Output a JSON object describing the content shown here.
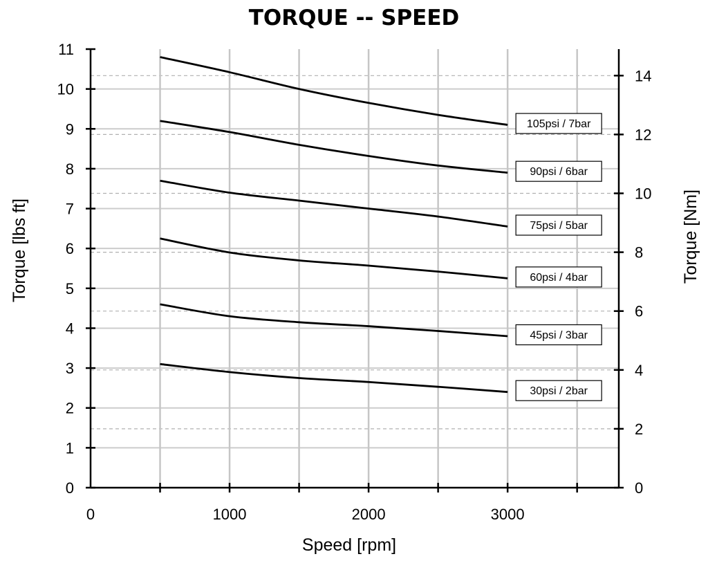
{
  "chart_data": {
    "type": "line",
    "title": "TORQUE -- SPEED",
    "xlabel": "Speed [rpm]",
    "ylabel": "Torque [lbs ft]",
    "y2label": "Torque [Nm]",
    "xlim": [
      0,
      3800
    ],
    "ylim": [
      0,
      11
    ],
    "y2lim": [
      0,
      14.9
    ],
    "x_ticks": [
      0,
      1000,
      2000,
      3000
    ],
    "y_ticks": [
      0,
      1,
      2,
      3,
      4,
      5,
      6,
      7,
      8,
      9,
      10,
      11
    ],
    "y2_ticks": [
      0,
      2,
      4,
      6,
      8,
      10,
      12,
      14
    ],
    "x_gridlines": [
      500,
      1000,
      1500,
      2000,
      2500,
      3000,
      3500
    ],
    "y2_gridlines": [
      0,
      2,
      4,
      6,
      8,
      10,
      12,
      14
    ],
    "grid": true,
    "series": [
      {
        "name": "105psi / 7bar",
        "x": [
          500,
          1000,
          1500,
          2000,
          2500,
          3000
        ],
        "y": [
          10.8,
          10.42,
          10.0,
          9.65,
          9.35,
          9.1
        ]
      },
      {
        "name": "90psi / 6bar",
        "x": [
          500,
          1000,
          1500,
          2000,
          2500,
          3000
        ],
        "y": [
          9.2,
          8.92,
          8.6,
          8.32,
          8.08,
          7.9
        ]
      },
      {
        "name": "75psi / 5bar",
        "x": [
          500,
          1000,
          1500,
          2000,
          2500,
          3000
        ],
        "y": [
          7.7,
          7.4,
          7.2,
          7.0,
          6.8,
          6.55
        ]
      },
      {
        "name": "60psi / 4bar",
        "x": [
          500,
          1000,
          1500,
          2000,
          2500,
          3000
        ],
        "y": [
          6.25,
          5.9,
          5.7,
          5.57,
          5.42,
          5.25
        ]
      },
      {
        "name": "45psi / 3bar",
        "x": [
          500,
          1000,
          1500,
          2000,
          2500,
          3000
        ],
        "y": [
          4.6,
          4.3,
          4.15,
          4.05,
          3.93,
          3.8
        ]
      },
      {
        "name": "30psi / 2bar",
        "x": [
          500,
          1000,
          1500,
          2000,
          2500,
          3000
        ],
        "y": [
          3.1,
          2.9,
          2.75,
          2.65,
          2.53,
          2.4
        ]
      }
    ]
  }
}
